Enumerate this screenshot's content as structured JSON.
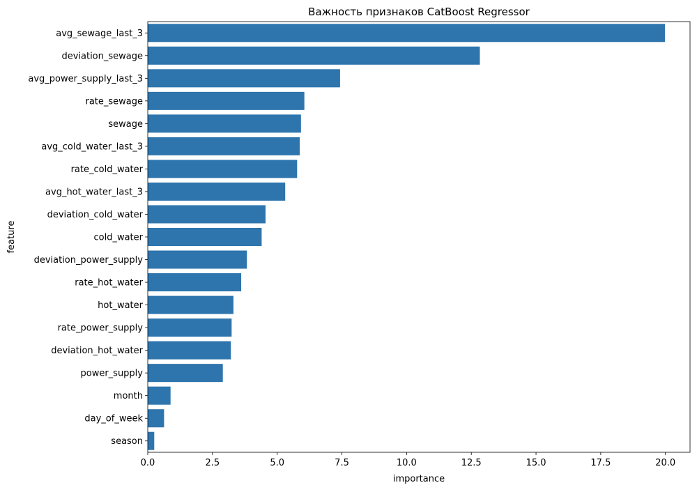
{
  "chart_data": {
    "type": "bar",
    "orientation": "horizontal",
    "title": "Важность признаков CatBoost Regressor",
    "xlabel": "importance",
    "ylabel": "feature",
    "xlim": [
      0,
      20.95
    ],
    "xticks": [
      "0.0",
      "2.5",
      "5.0",
      "7.5",
      "10.0",
      "12.5",
      "15.0",
      "17.5",
      "20.0"
    ],
    "grid": false,
    "bar_color": "#2e75ad",
    "categories": [
      "avg_sewage_last_3",
      "deviation_sewage",
      "avg_power_supply_last_3",
      "rate_sewage",
      "sewage",
      "avg_cold_water_last_3",
      "rate_cold_water",
      "avg_hot_water_last_3",
      "deviation_cold_water",
      "cold_water",
      "deviation_power_supply",
      "rate_hot_water",
      "hot_water",
      "rate_power_supply",
      "deviation_hot_water",
      "power_supply",
      "month",
      "day_of_week",
      "season"
    ],
    "values": [
      19.98,
      12.83,
      7.43,
      6.05,
      5.92,
      5.87,
      5.77,
      5.31,
      4.55,
      4.4,
      3.83,
      3.61,
      3.31,
      3.24,
      3.21,
      2.9,
      0.88,
      0.63,
      0.25
    ]
  }
}
